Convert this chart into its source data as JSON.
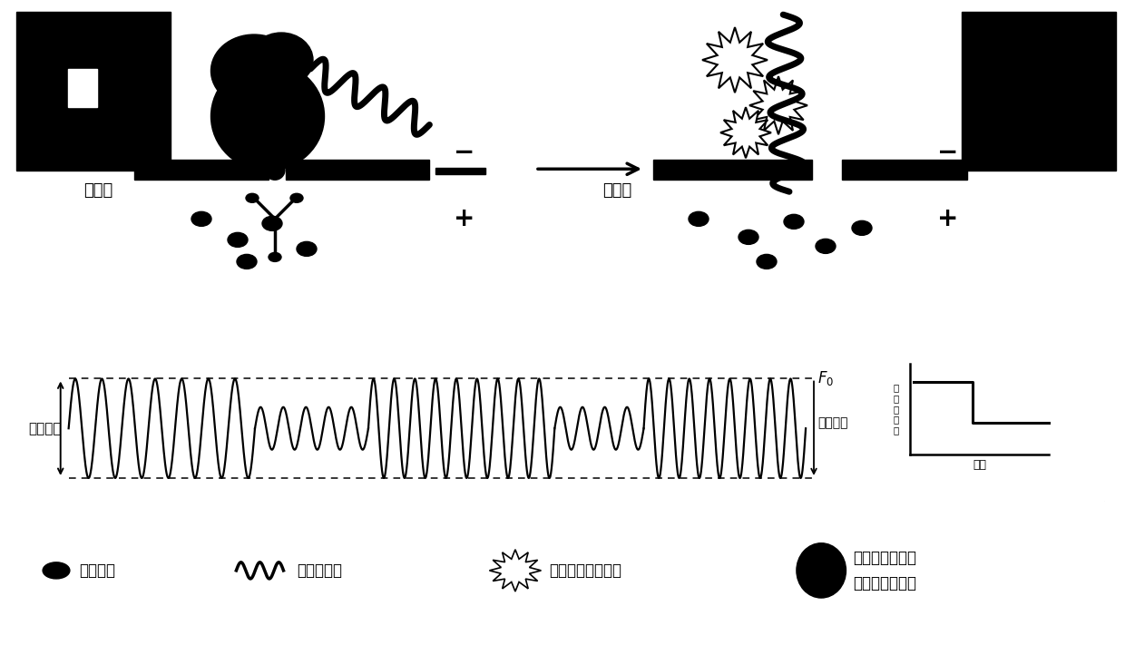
{
  "bg_color": "#ffffff",
  "text_color": "#000000",
  "nanopore_label": "纳米孔",
  "minus_sign": "−",
  "plus_sign": "+",
  "fluorescence_amplitude_label": "荧光振幅",
  "signal_amplitude_label": "信号幅度",
  "F0_label": "F₀",
  "photon_label": "荧光光子数",
  "time_label": "时间",
  "indicator_ion_label": "指示离子",
  "analyte_label": "分析物分子",
  "unlit_probe_label": "未发光的荧光探针",
  "lit_probe_label1": "结合指示离子后",
  "lit_probe_label2": "发光的荧光探针"
}
